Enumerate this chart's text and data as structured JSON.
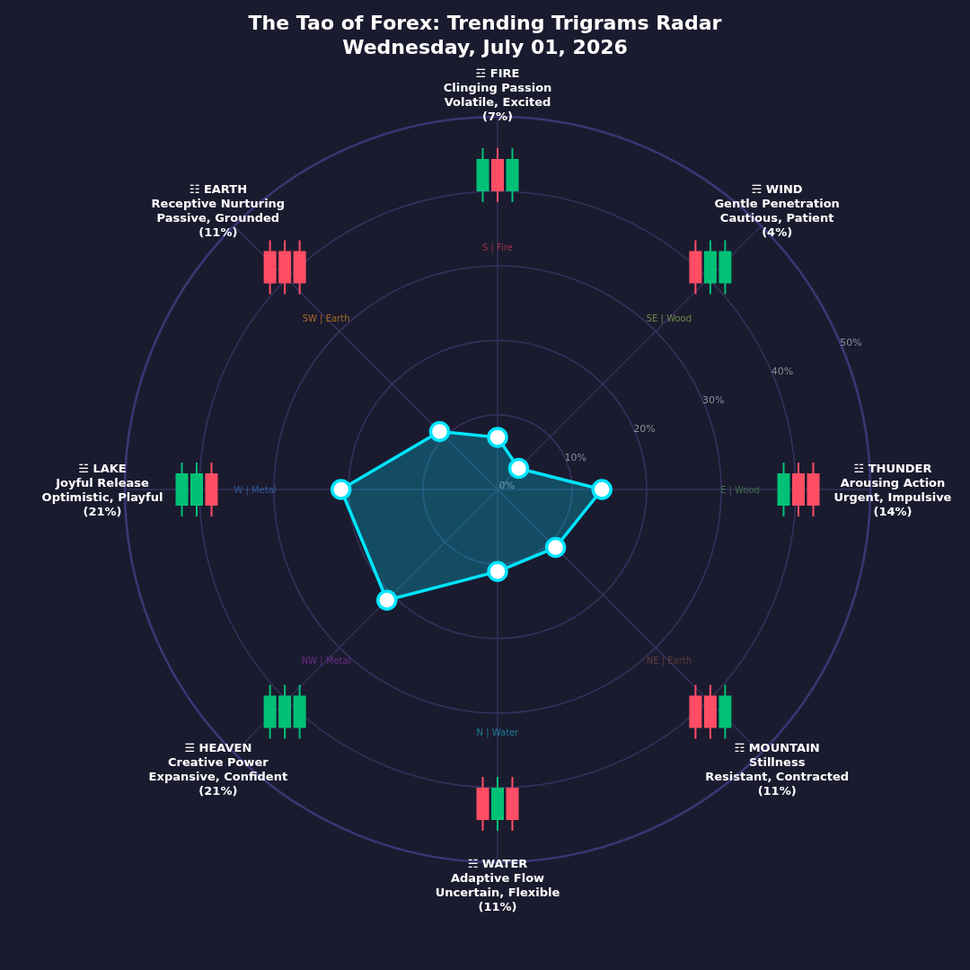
{
  "chart_data": {
    "type": "radar",
    "title": "The Tao of Forex: Trending Trigrams Radar",
    "subtitle": "Wednesday, July 01, 2026",
    "categories": [
      "☲ FIRE\nClinging Passion\nVolatile, Excited\n(7%)",
      "☴ WIND\nGentle Penetration\nCautious, Patient\n(4%)",
      "☳ THUNDER\nArousing Action\nUrgent, Impulsive\n(14%)",
      "☶ MOUNTAIN\nStillness\nResistant, Contracted\n(11%)",
      "☵ WATER\nAdaptive Flow\nUncertain, Flexible\n(11%)",
      "☰ HEAVEN\nCreative Power\nExpansive, Confident\n(21%)",
      "☱ LAKE\nJoyful Release\nOptimistic, Playful\n(21%)",
      "☷ EARTH\nReceptive Nurturing\nPassive, Grounded\n(11%)"
    ],
    "series": [
      {
        "color": "#00e5ff",
        "values": [
          7,
          4,
          14,
          11,
          11,
          21,
          21,
          11
        ]
      }
    ],
    "ylim": [
      0,
      50
    ],
    "yticks": [
      {
        "value": 0,
        "label": "0%"
      },
      {
        "value": 10,
        "label": "10%"
      },
      {
        "value": 20,
        "label": "20%"
      },
      {
        "value": 30,
        "label": "30%"
      },
      {
        "value": 40,
        "label": "40%"
      },
      {
        "value": 50,
        "label": "50%"
      }
    ],
    "grid": true,
    "marker": "circle",
    "line_style": "solid",
    "annotations": [
      "S | Fire",
      "SE | Wood",
      "E | Wood",
      "NE | Earth",
      "N | Water",
      "NW | Metal",
      "W | Metal",
      "SW | Earth"
    ]
  }
}
